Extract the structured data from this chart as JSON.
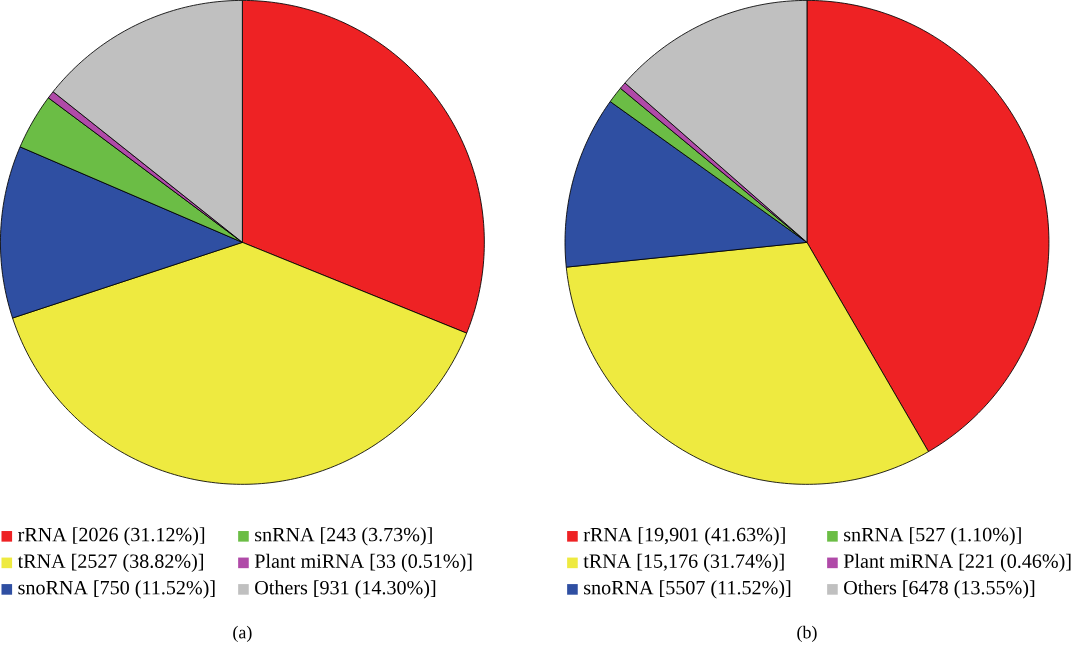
{
  "chart_data": [
    {
      "type": "pie",
      "title": "(a)",
      "legend": "bottom",
      "categories": [
        "rRNA [2026 (31.12%)]",
        "tRNA [2527 (38.82%)]",
        "snoRNA [750 (11.52%)]",
        "snRNA [243 (3.73%)]",
        "Plant miRNA [33 (0.51%)]",
        "Others [931 (14.30%)]"
      ],
      "values": [
        2026,
        2527,
        750,
        243,
        33,
        931
      ],
      "colors": [
        "#ee2224",
        "#eeea40",
        "#2f4fa2",
        "#6bbd45",
        "#b04aa8",
        "#c0c0c0"
      ]
    },
    {
      "type": "pie",
      "title": "(b)",
      "legend": "bottom",
      "categories": [
        "rRNA [19,901 (41.63%)]",
        "tRNA [15,176 (31.74%)]",
        "snoRNA [5507 (11.52%)]",
        "snRNA [527 (1.10%)]",
        "Plant miRNA [221 (0.46%)]",
        "Others [6478 (13.55%)]"
      ],
      "values": [
        19901,
        15176,
        5507,
        527,
        221,
        6478
      ],
      "colors": [
        "#ee2224",
        "#eeea40",
        "#2f4fa2",
        "#6bbd45",
        "#b04aa8",
        "#c0c0c0"
      ]
    }
  ]
}
